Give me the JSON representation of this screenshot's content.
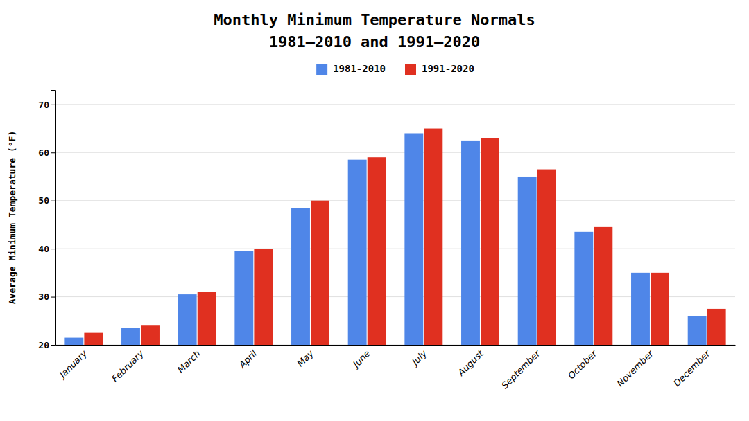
{
  "chart_data": {
    "type": "bar",
    "title": "Monthly Minimum Temperature Normals",
    "subtitle": "1981–2010 and 1991–2020",
    "ylabel": "Average Minimum Temperature (°F)",
    "categories": [
      "January",
      "February",
      "March",
      "April",
      "May",
      "June",
      "July",
      "August",
      "September",
      "October",
      "November",
      "December"
    ],
    "series": [
      {
        "name": "1981-2010",
        "color": "#4f86e8",
        "values": [
          21.5,
          23.5,
          30.5,
          39.5,
          48.5,
          58.5,
          64.0,
          62.5,
          55.0,
          43.5,
          35.0,
          26.0
        ]
      },
      {
        "name": "1991-2020",
        "color": "#e03020",
        "values": [
          22.5,
          24.0,
          31.0,
          40.0,
          50.0,
          59.0,
          65.0,
          63.0,
          56.5,
          44.5,
          35.0,
          27.5
        ]
      }
    ],
    "ylim": [
      20,
      73
    ],
    "yticks": [
      20,
      30,
      40,
      50,
      60,
      70
    ],
    "grid": true,
    "legend": "top"
  }
}
